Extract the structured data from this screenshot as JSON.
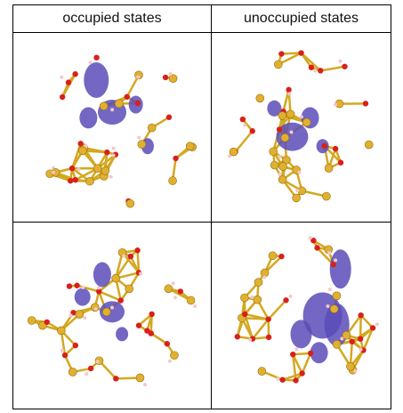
{
  "header": [
    "occupied states",
    "unoccupied states"
  ]
}
